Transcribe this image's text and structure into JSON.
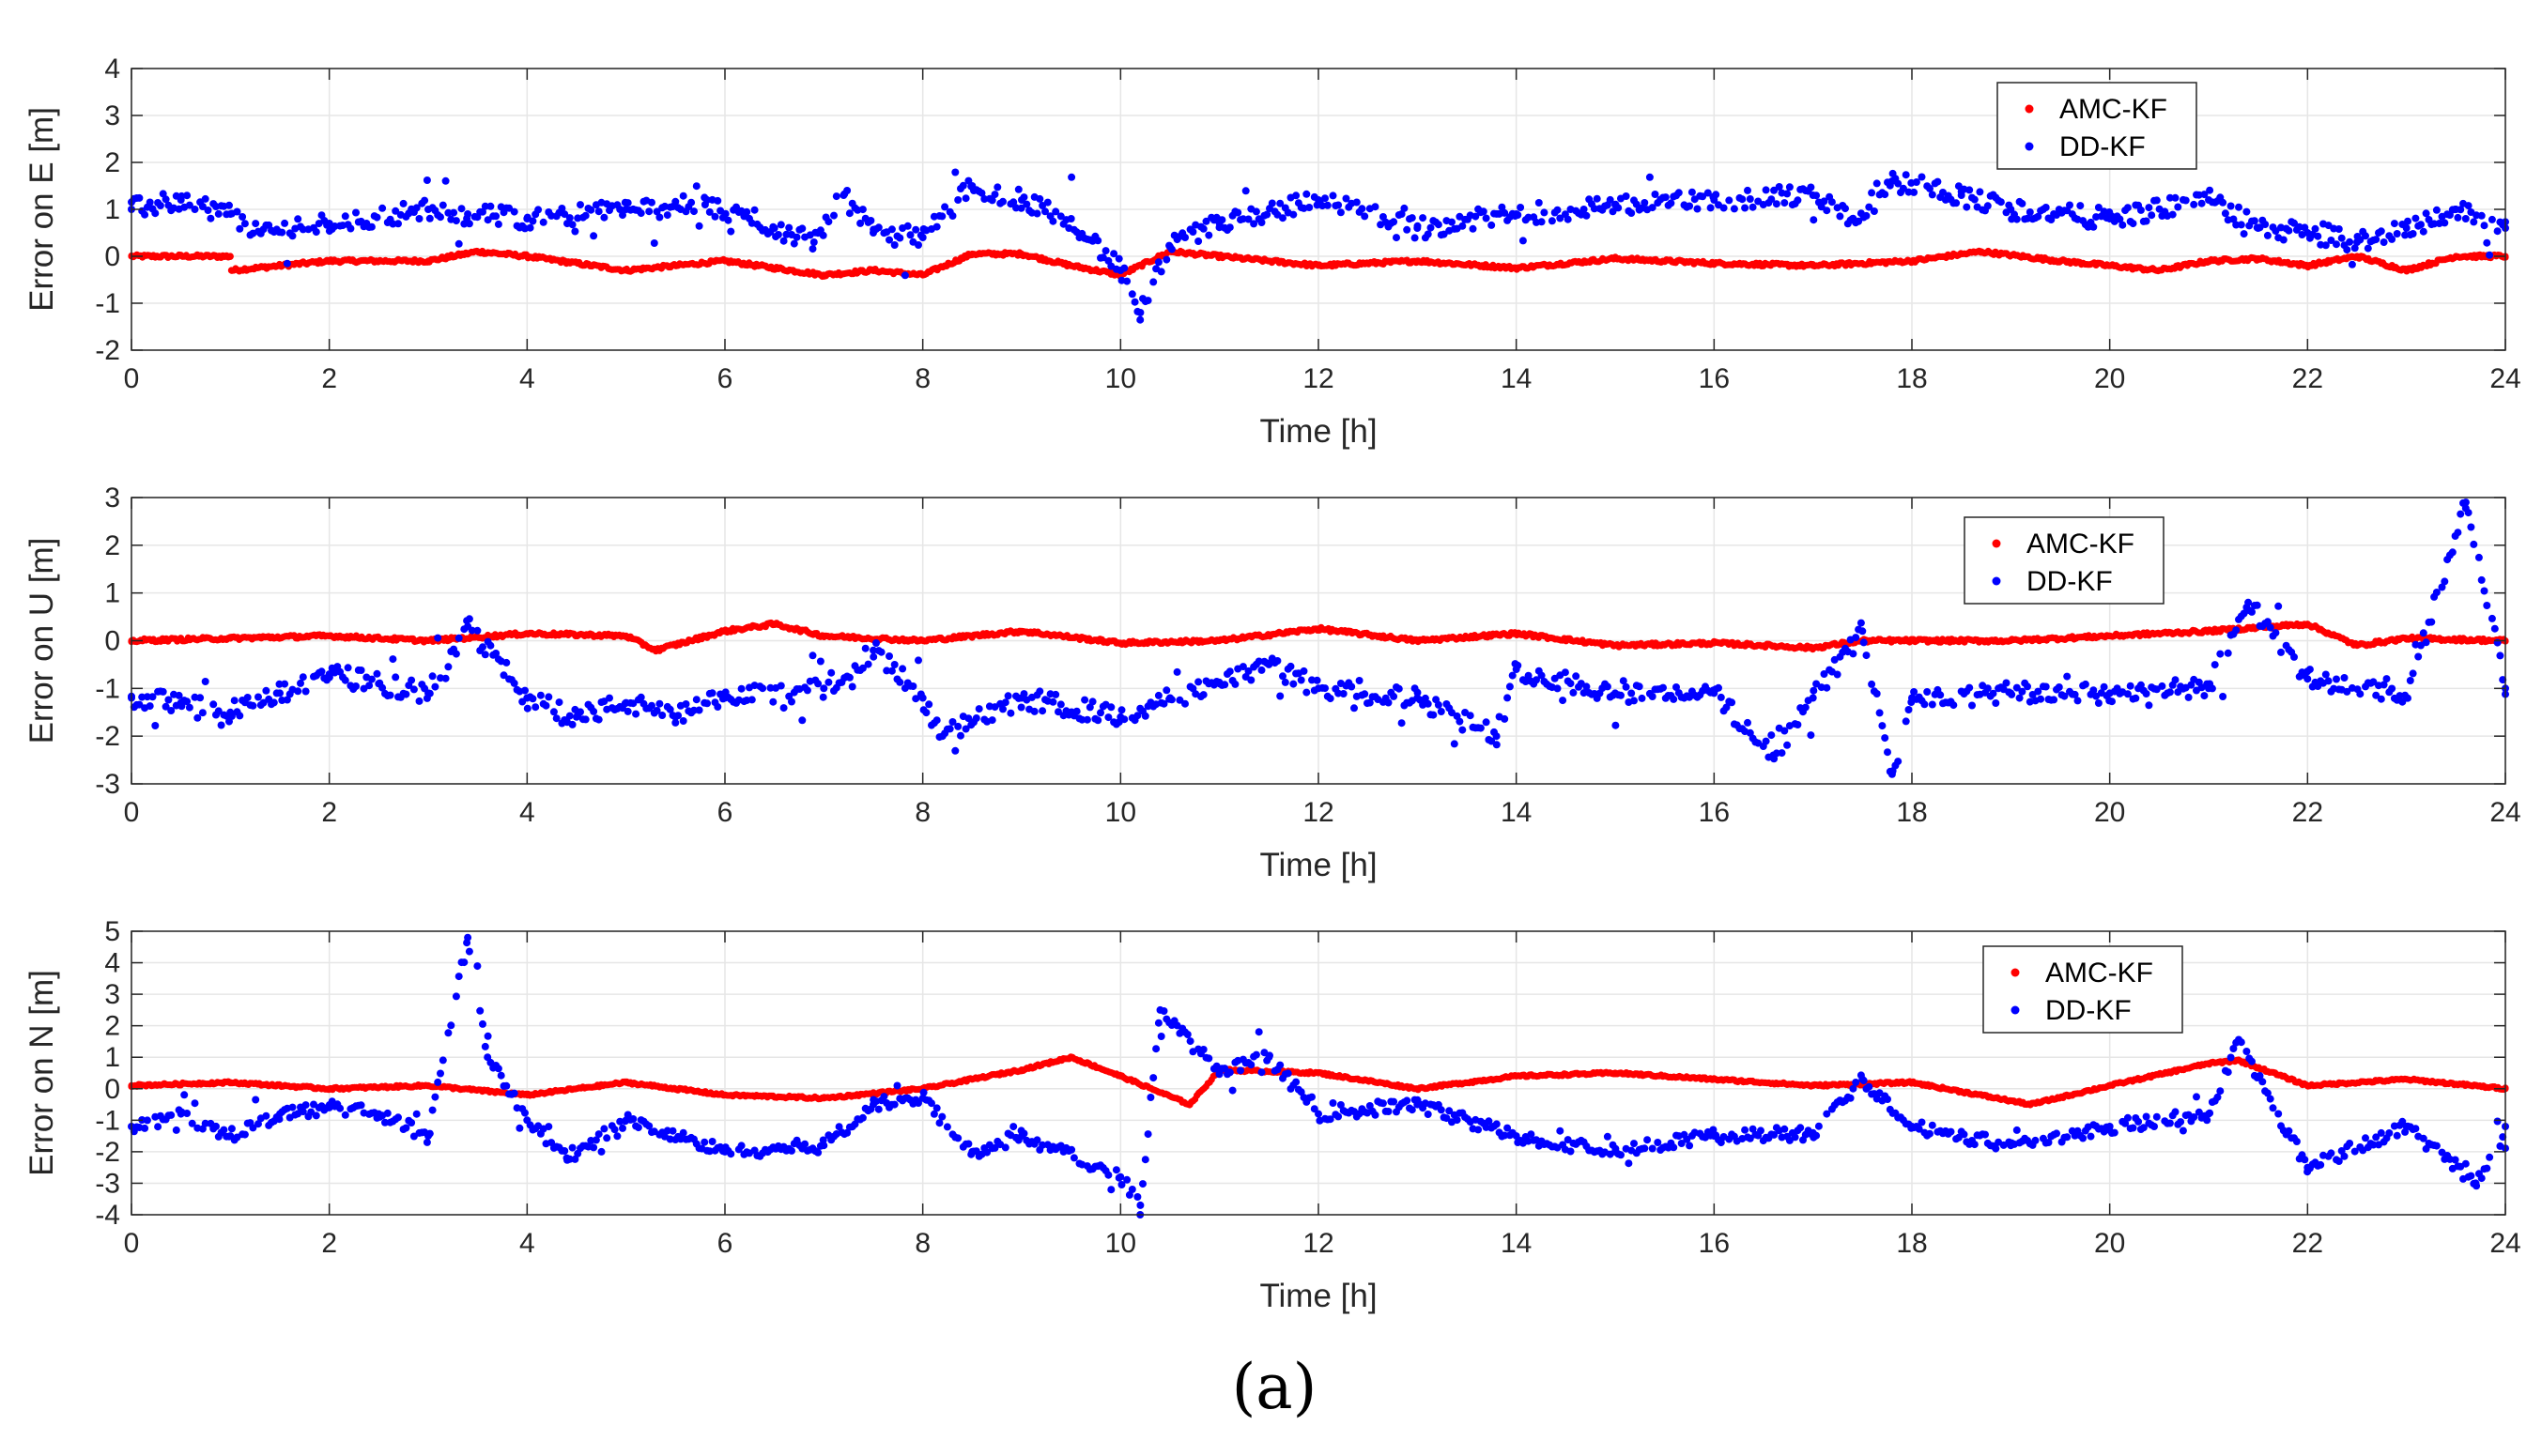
{
  "figure": {
    "caption": "(a)",
    "colors": {
      "amc": "#ff0000",
      "dd": "#0000ff",
      "grid": "#e6e6e6",
      "axis": "#262626"
    }
  },
  "legend": {
    "series": [
      "AMC-KF",
      "DD-KF"
    ]
  },
  "chart_data": [
    {
      "type": "scatter",
      "title": "",
      "xlabel": "Time [h]",
      "ylabel": "Error on E [m]",
      "xlim": [
        0,
        24
      ],
      "ylim": [
        -2,
        4
      ],
      "xticks": [
        0,
        2,
        4,
        6,
        8,
        10,
        12,
        14,
        16,
        18,
        20,
        22,
        24
      ],
      "yticks": [
        -2,
        -1,
        0,
        1,
        2,
        3,
        4
      ],
      "legend_position": "top-right",
      "series": [
        {
          "name": "AMC-KF",
          "color": "#ff0000",
          "x": [
            0,
            1,
            1.01,
            2,
            3,
            3.5,
            4,
            5,
            6,
            7,
            7.5,
            8,
            8.5,
            9,
            9.5,
            10,
            10.5,
            11,
            12,
            13,
            14,
            15,
            16,
            17,
            18,
            18.7,
            19.5,
            20,
            20.5,
            21,
            21.5,
            22,
            22.5,
            23,
            23.5,
            24
          ],
          "y": [
            0.0,
            0.0,
            -0.3,
            -0.1,
            -0.1,
            0.1,
            0.0,
            -0.3,
            -0.1,
            -0.4,
            -0.3,
            -0.4,
            0.05,
            0.05,
            -0.2,
            -0.4,
            0.1,
            0.0,
            -0.2,
            -0.1,
            -0.25,
            -0.05,
            -0.15,
            -0.2,
            -0.1,
            0.1,
            -0.1,
            -0.2,
            -0.3,
            -0.1,
            -0.05,
            -0.2,
            0.0,
            -0.3,
            0.0,
            0.0
          ]
        },
        {
          "name": "DD-KF",
          "color": "#0000ff",
          "x": [
            0,
            0.5,
            1,
            1.3,
            2,
            3,
            3.4,
            4,
            5,
            5.8,
            6.5,
            6.9,
            7.2,
            7.5,
            8,
            8.5,
            9,
            9.5,
            10,
            10.2,
            10.5,
            11,
            12,
            13,
            14,
            15,
            16,
            17,
            17.4,
            17.8,
            18.5,
            19,
            20,
            21,
            21.5,
            22,
            22.5,
            23,
            23.5,
            24
          ],
          "y": [
            1.0,
            1.2,
            0.9,
            0.5,
            0.7,
            1.0,
            0.9,
            0.8,
            1.0,
            1.1,
            0.6,
            0.3,
            1.3,
            0.5,
            0.4,
            1.5,
            1.2,
            0.8,
            -0.3,
            -1.2,
            0.2,
            0.7,
            1.2,
            0.6,
            0.9,
            1.1,
            1.2,
            1.3,
            0.8,
            1.6,
            1.3,
            1.0,
            0.8,
            1.2,
            0.6,
            0.5,
            0.3,
            0.6,
            1.0,
            0.6
          ]
        }
      ]
    },
    {
      "type": "scatter",
      "title": "",
      "xlabel": "Time [h]",
      "ylabel": "Error on U [m]",
      "xlim": [
        0,
        24
      ],
      "ylim": [
        -3,
        3
      ],
      "xticks": [
        0,
        2,
        4,
        6,
        8,
        10,
        12,
        14,
        16,
        18,
        20,
        22,
        24
      ],
      "yticks": [
        -3,
        -2,
        -1,
        0,
        1,
        2,
        3
      ],
      "legend_position": "top-right",
      "series": [
        {
          "name": "AMC-KF",
          "color": "#ff0000",
          "x": [
            0,
            1,
            2,
            3,
            4,
            5,
            5.3,
            6,
            6.5,
            7,
            8,
            9,
            10,
            11,
            12,
            13,
            14,
            15,
            16,
            17,
            17.5,
            18,
            19,
            20,
            21,
            22,
            22.5,
            23,
            24
          ],
          "y": [
            0.0,
            0.05,
            0.1,
            0.0,
            0.15,
            0.1,
            -0.2,
            0.2,
            0.35,
            0.1,
            0.0,
            0.2,
            -0.05,
            0.0,
            0.25,
            0.0,
            0.15,
            -0.1,
            -0.05,
            -0.15,
            0.0,
            0.0,
            0.0,
            0.1,
            0.2,
            0.35,
            -0.1,
            0.05,
            0.0
          ]
        },
        {
          "name": "DD-KF",
          "color": "#0000ff",
          "x": [
            0,
            0.5,
            1,
            1.5,
            2,
            2.5,
            3,
            3.4,
            4,
            4.5,
            5,
            5.5,
            6,
            7,
            7.5,
            8,
            8.2,
            9,
            10,
            10.5,
            11,
            11.5,
            12,
            13,
            13.8,
            14,
            15,
            16,
            16.6,
            17,
            17.5,
            17.8,
            18,
            19,
            20,
            21,
            21.4,
            22,
            23,
            23.6,
            24
          ],
          "y": [
            -1.2,
            -1.3,
            -1.5,
            -1.1,
            -0.7,
            -0.9,
            -1.1,
            0.3,
            -1.2,
            -1.6,
            -1.3,
            -1.6,
            -1.2,
            -1.0,
            -0.2,
            -1.2,
            -2.0,
            -1.2,
            -1.6,
            -1.2,
            -0.9,
            -0.5,
            -1.0,
            -1.2,
            -2.0,
            -0.6,
            -1.1,
            -1.1,
            -2.4,
            -1.2,
            0.2,
            -2.8,
            -1.2,
            -1.1,
            -1.1,
            -1.0,
            0.8,
            -0.8,
            -1.2,
            2.9,
            -1.0
          ]
        }
      ]
    },
    {
      "type": "scatter",
      "title": "",
      "xlabel": "Time [h]",
      "ylabel": "Error on N [m]",
      "xlim": [
        0,
        24
      ],
      "ylim": [
        -4,
        5
      ],
      "xticks": [
        0,
        2,
        4,
        6,
        8,
        10,
        12,
        14,
        16,
        18,
        20,
        22,
        24
      ],
      "yticks": [
        -4,
        -3,
        -2,
        -1,
        0,
        1,
        2,
        3,
        4,
        5
      ],
      "legend_position": "top-right",
      "series": [
        {
          "name": "AMC-KF",
          "color": "#ff0000",
          "x": [
            0,
            1,
            2,
            3,
            4,
            5,
            6,
            7,
            8,
            9,
            9.5,
            10,
            10.7,
            11,
            12,
            13,
            14,
            15,
            16,
            17,
            18,
            19.2,
            20,
            21,
            21.3,
            22,
            23,
            24
          ],
          "y": [
            0.1,
            0.2,
            0.0,
            0.1,
            -0.2,
            0.2,
            -0.2,
            -0.3,
            0.0,
            0.6,
            1.0,
            0.4,
            -0.5,
            0.6,
            0.5,
            0.0,
            0.4,
            0.5,
            0.3,
            0.1,
            0.2,
            -0.5,
            0.1,
            0.8,
            0.9,
            0.1,
            0.3,
            0.0
          ]
        },
        {
          "name": "DD-KF",
          "color": "#0000ff",
          "x": [
            0,
            0.5,
            1,
            1.5,
            2,
            2.5,
            3,
            3.4,
            3.6,
            4,
            4.4,
            5,
            6,
            7,
            7.5,
            8,
            8.5,
            9,
            10,
            10.2,
            10.4,
            11,
            11.5,
            12,
            13,
            14,
            15,
            16,
            17,
            17.5,
            18,
            19,
            20,
            21,
            21.3,
            22,
            23,
            23.7,
            24
          ],
          "y": [
            -1.2,
            -0.8,
            -1.5,
            -0.8,
            -0.6,
            -0.8,
            -1.5,
            4.8,
            1.0,
            -1.0,
            -2.2,
            -1.0,
            -2.0,
            -1.8,
            -0.5,
            -0.3,
            -2.0,
            -1.5,
            -2.8,
            -3.7,
            2.5,
            0.5,
            1.0,
            -0.8,
            -0.5,
            -1.5,
            -2.0,
            -1.5,
            -1.4,
            0.3,
            -1.2,
            -1.8,
            -1.2,
            -0.8,
            1.5,
            -2.5,
            -1.2,
            -3.0,
            -1.2
          ]
        }
      ]
    }
  ]
}
